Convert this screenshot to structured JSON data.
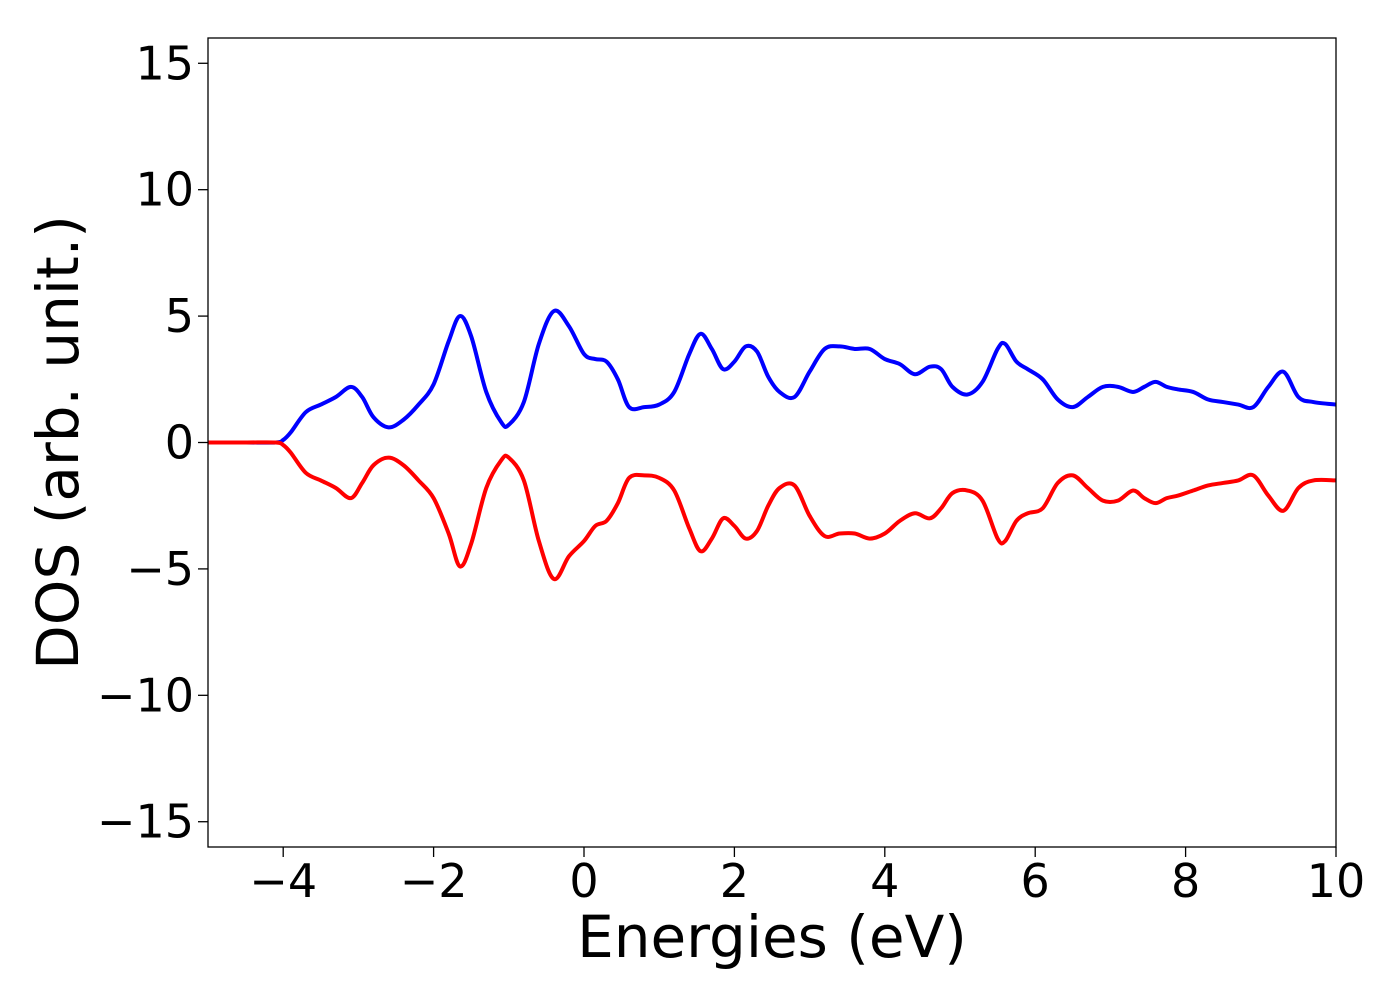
{
  "chart_data": {
    "type": "line",
    "title": "",
    "xlabel": "Energies (eV)",
    "ylabel": "DOS (arb. unit.)",
    "xlim": [
      -5,
      10
    ],
    "ylim": [
      -16,
      16
    ],
    "grid": false,
    "legend": "none",
    "x_ticks": [
      -4,
      -2,
      0,
      2,
      4,
      6,
      8,
      10
    ],
    "x_tick_labels": [
      "−4",
      "−2",
      "0",
      "2",
      "4",
      "6",
      "8",
      "10"
    ],
    "y_ticks": [
      15,
      10,
      5,
      0,
      -5,
      -10,
      -15
    ],
    "y_tick_labels": [
      "15",
      "10",
      "5",
      "0",
      "−5",
      "−10",
      "−15"
    ],
    "series": [
      {
        "color": "#0000ff",
        "x": [
          -5.0,
          -4.5,
          -4.1,
          -4.0,
          -3.9,
          -3.7,
          -3.5,
          -3.3,
          -3.1,
          -2.95,
          -2.8,
          -2.6,
          -2.4,
          -2.2,
          -2.0,
          -1.8,
          -1.65,
          -1.5,
          -1.3,
          -1.1,
          -1.0,
          -0.8,
          -0.6,
          -0.4,
          -0.2,
          0.0,
          0.15,
          0.3,
          0.45,
          0.6,
          0.8,
          1.0,
          1.2,
          1.4,
          1.55,
          1.7,
          1.85,
          2.0,
          2.15,
          2.3,
          2.45,
          2.6,
          2.8,
          3.0,
          3.2,
          3.4,
          3.6,
          3.8,
          4.0,
          4.2,
          4.4,
          4.6,
          4.75,
          4.9,
          5.1,
          5.3,
          5.5,
          5.6,
          5.75,
          5.9,
          6.1,
          6.3,
          6.5,
          6.7,
          6.9,
          7.1,
          7.3,
          7.45,
          7.6,
          7.75,
          7.9,
          8.1,
          8.3,
          8.5,
          8.7,
          8.9,
          9.1,
          9.3,
          9.5,
          9.7,
          10.0
        ],
        "y": [
          0.0,
          0.0,
          0.0,
          0.1,
          0.4,
          1.2,
          1.5,
          1.8,
          2.2,
          1.8,
          1.0,
          0.6,
          0.9,
          1.5,
          2.3,
          4.0,
          5.0,
          4.2,
          2.0,
          0.8,
          0.7,
          1.6,
          3.9,
          5.2,
          4.6,
          3.5,
          3.3,
          3.2,
          2.5,
          1.4,
          1.4,
          1.5,
          2.0,
          3.5,
          4.3,
          3.7,
          2.9,
          3.2,
          3.8,
          3.6,
          2.6,
          2.0,
          1.8,
          2.8,
          3.7,
          3.8,
          3.7,
          3.7,
          3.3,
          3.1,
          2.7,
          3.0,
          2.9,
          2.2,
          1.9,
          2.4,
          3.7,
          3.9,
          3.2,
          2.9,
          2.5,
          1.7,
          1.4,
          1.8,
          2.2,
          2.2,
          2.0,
          2.2,
          2.4,
          2.2,
          2.1,
          2.0,
          1.7,
          1.6,
          1.5,
          1.4,
          2.2,
          2.8,
          1.8,
          1.6,
          1.5
        ]
      },
      {
        "color": "#ff0000",
        "x": [
          -5.0,
          -4.5,
          -4.1,
          -4.0,
          -3.9,
          -3.7,
          -3.5,
          -3.3,
          -3.1,
          -2.95,
          -2.8,
          -2.6,
          -2.4,
          -2.2,
          -2.0,
          -1.8,
          -1.65,
          -1.5,
          -1.3,
          -1.1,
          -1.0,
          -0.8,
          -0.6,
          -0.4,
          -0.2,
          0.0,
          0.15,
          0.3,
          0.45,
          0.6,
          0.8,
          1.0,
          1.2,
          1.4,
          1.55,
          1.7,
          1.85,
          2.0,
          2.15,
          2.3,
          2.45,
          2.6,
          2.8,
          3.0,
          3.2,
          3.4,
          3.6,
          3.8,
          4.0,
          4.2,
          4.4,
          4.6,
          4.75,
          4.9,
          5.1,
          5.3,
          5.5,
          5.6,
          5.75,
          5.9,
          6.1,
          6.3,
          6.5,
          6.7,
          6.9,
          7.1,
          7.3,
          7.45,
          7.6,
          7.75,
          7.9,
          8.1,
          8.3,
          8.5,
          8.7,
          8.9,
          9.1,
          9.3,
          9.5,
          9.7,
          10.0
        ],
        "y": [
          0.0,
          0.0,
          0.0,
          -0.1,
          -0.4,
          -1.2,
          -1.5,
          -1.8,
          -2.2,
          -1.6,
          -0.9,
          -0.6,
          -0.9,
          -1.5,
          -2.2,
          -3.6,
          -4.9,
          -4.0,
          -1.8,
          -0.7,
          -0.6,
          -1.5,
          -3.9,
          -5.4,
          -4.5,
          -3.9,
          -3.3,
          -3.1,
          -2.4,
          -1.4,
          -1.3,
          -1.4,
          -1.9,
          -3.4,
          -4.3,
          -3.8,
          -3.0,
          -3.3,
          -3.8,
          -3.5,
          -2.5,
          -1.8,
          -1.7,
          -2.9,
          -3.7,
          -3.6,
          -3.6,
          -3.8,
          -3.6,
          -3.1,
          -2.8,
          -3.0,
          -2.6,
          -2.0,
          -1.9,
          -2.3,
          -3.8,
          -3.9,
          -3.1,
          -2.8,
          -2.6,
          -1.6,
          -1.3,
          -1.8,
          -2.3,
          -2.3,
          -1.9,
          -2.2,
          -2.4,
          -2.2,
          -2.1,
          -1.9,
          -1.7,
          -1.6,
          -1.5,
          -1.3,
          -2.1,
          -2.7,
          -1.8,
          -1.5,
          -1.5
        ]
      }
    ]
  }
}
